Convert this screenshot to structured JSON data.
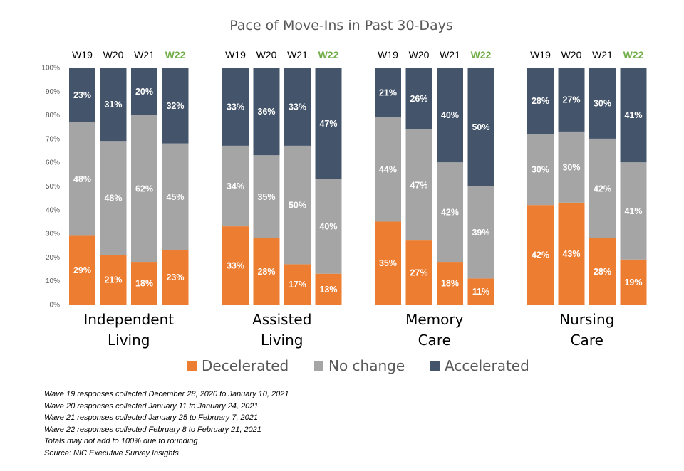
{
  "chart_data": {
    "type": "bar",
    "stacked": true,
    "title": "Pace of Move-Ins in Past 30-Days",
    "ylim": [
      0,
      100
    ],
    "y_ticks": [
      "0%",
      "10%",
      "20%",
      "30%",
      "40%",
      "50%",
      "60%",
      "70%",
      "80%",
      "90%",
      "100%"
    ],
    "legend_position": "bottom",
    "series_meta": [
      {
        "name": "Decelerated",
        "color": "#ED7D31"
      },
      {
        "name": "No change",
        "color": "#A5A5A5"
      },
      {
        "name": "Accelerated",
        "color": "#44546A"
      }
    ],
    "current_wave_color": "#70AD47",
    "groups": [
      {
        "label_lines": [
          "Independent",
          "Living"
        ],
        "bars": [
          {
            "wave": "W19",
            "values": [
              29,
              48,
              23
            ],
            "labels": [
              "29%",
              "48%",
              "23%"
            ]
          },
          {
            "wave": "W20",
            "values": [
              21,
              48,
              31
            ],
            "labels": [
              "21%",
              "48%",
              "31%"
            ]
          },
          {
            "wave": "W21",
            "values": [
              18,
              62,
              20
            ],
            "labels": [
              "18%",
              "62%",
              "20%"
            ]
          },
          {
            "wave": "W22",
            "values": [
              23,
              45,
              32
            ],
            "labels": [
              "23%",
              "45%",
              "32%"
            ],
            "current": true
          }
        ]
      },
      {
        "label_lines": [
          "Assisted",
          "Living"
        ],
        "bars": [
          {
            "wave": "W19",
            "values": [
              33,
              34,
              33
            ],
            "labels": [
              "33%",
              "34%",
              "33%"
            ]
          },
          {
            "wave": "W20",
            "values": [
              28,
              35,
              36
            ],
            "labels": [
              "28%",
              "35%",
              "36%"
            ]
          },
          {
            "wave": "W21",
            "values": [
              17,
              50,
              33
            ],
            "labels": [
              "17%",
              "50%",
              "33%"
            ]
          },
          {
            "wave": "W22",
            "values": [
              13,
              40,
              47
            ],
            "labels": [
              "13%",
              "40%",
              "47%"
            ],
            "current": true
          }
        ]
      },
      {
        "label_lines": [
          "Memory",
          "Care"
        ],
        "bars": [
          {
            "wave": "W19",
            "values": [
              35,
              44,
              21
            ],
            "labels": [
              "35%",
              "44%",
              "21%"
            ]
          },
          {
            "wave": "W20",
            "values": [
              27,
              47,
              26
            ],
            "labels": [
              "27%",
              "47%",
              "26%"
            ]
          },
          {
            "wave": "W21",
            "values": [
              18,
              42,
              40
            ],
            "labels": [
              "18%",
              "42%",
              "40%"
            ]
          },
          {
            "wave": "W22",
            "values": [
              11,
              39,
              50
            ],
            "labels": [
              "11%",
              "39%",
              "50%"
            ],
            "current": true
          }
        ]
      },
      {
        "label_lines": [
          "Nursing",
          "Care"
        ],
        "bars": [
          {
            "wave": "W19",
            "values": [
              42,
              30,
              28
            ],
            "labels": [
              "42%",
              "30%",
              "28%"
            ]
          },
          {
            "wave": "W20",
            "values": [
              43,
              30,
              27
            ],
            "labels": [
              "43%",
              "30%",
              "27%"
            ]
          },
          {
            "wave": "W21",
            "values": [
              28,
              42,
              30
            ],
            "labels": [
              "28%",
              "42%",
              "30%"
            ]
          },
          {
            "wave": "W22",
            "values": [
              19,
              41,
              41
            ],
            "labels": [
              "19%",
              "41%",
              "41%"
            ],
            "current": true
          }
        ]
      }
    ]
  },
  "notes": [
    "Wave 19 responses collected  December 28, 2020 to January 10, 2021",
    "Wave 20 responses collected  January 11 to January 24, 2021",
    "Wave 21 responses collected  January 25 to February 7, 2021",
    "Wave 22 responses collected  February 8 to February 21, 2021",
    "Totals may not add to 100% due to rounding",
    "Source: NIC Executive Survey Insights"
  ]
}
